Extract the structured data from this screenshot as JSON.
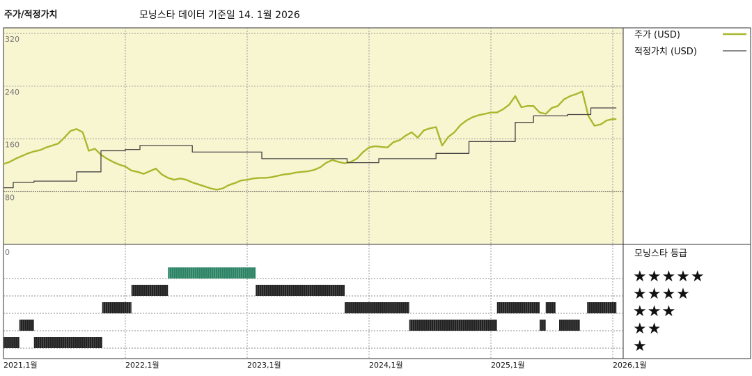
{
  "chart_data": [
    {
      "type": "line",
      "title": "주가/적정가치",
      "subtitle": "모닝스타 데이터 기준일 14. 1월 2026",
      "xlabel": "",
      "ylabel": "",
      "ylim": [
        0,
        320
      ],
      "yticks": [
        "320",
        "240",
        "160",
        "80"
      ],
      "xlim": [
        "2021-01",
        "2026-01"
      ],
      "xticks": [
        "2021,1월",
        "2022,1월",
        "2023,1월",
        "2024,1월",
        "2025,1월",
        "2026,1월"
      ],
      "background_color": "#f8f5d1",
      "grid": true,
      "legend_position": "top-right",
      "series": [
        {
          "name": "주가 (USD)",
          "color": "#a8b82c",
          "x": [
            2021.0,
            2021.05,
            2021.1,
            2021.15,
            2021.2,
            2021.25,
            2021.3,
            2021.35,
            2021.4,
            2021.45,
            2021.5,
            2021.55,
            2021.6,
            2021.65,
            2021.7,
            2021.75,
            2021.8,
            2021.85,
            2021.9,
            2021.95,
            2022.0,
            2022.05,
            2022.1,
            2022.15,
            2022.2,
            2022.25,
            2022.3,
            2022.35,
            2022.4,
            2022.45,
            2022.5,
            2022.55,
            2022.6,
            2022.65,
            2022.7,
            2022.75,
            2022.8,
            2022.85,
            2022.9,
            2022.95,
            2023.0,
            2023.05,
            2023.1,
            2023.15,
            2023.2,
            2023.25,
            2023.3,
            2023.35,
            2023.4,
            2023.45,
            2023.5,
            2023.55,
            2023.6,
            2023.65,
            2023.7,
            2023.75,
            2023.8,
            2023.85,
            2023.9,
            2023.95,
            2024.0,
            2024.05,
            2024.1,
            2024.15,
            2024.2,
            2024.25,
            2024.3,
            2024.35,
            2024.4,
            2024.45,
            2024.5,
            2024.55,
            2024.6,
            2024.65,
            2024.7,
            2024.75,
            2024.8,
            2024.85,
            2024.9,
            2024.95,
            2025.0,
            2025.05,
            2025.1,
            2025.15,
            2025.2,
            2025.25,
            2025.3,
            2025.35,
            2025.4,
            2025.45,
            2025.5,
            2025.55,
            2025.6,
            2025.65,
            2025.7,
            2025.75,
            2025.8,
            2025.85,
            2025.9,
            2025.95,
            2026.0,
            2026.03
          ],
          "values": [
            122,
            125,
            130,
            134,
            138,
            141,
            143,
            147,
            150,
            153,
            162,
            172,
            175,
            170,
            142,
            145,
            136,
            130,
            125,
            121,
            118,
            112,
            110,
            107,
            111,
            115,
            106,
            101,
            98,
            100,
            98,
            94,
            91,
            88,
            85,
            83,
            85,
            90,
            93,
            97,
            98,
            100,
            101,
            101,
            102,
            104,
            106,
            107,
            109,
            110,
            111,
            113,
            117,
            124,
            128,
            125,
            123,
            125,
            130,
            140,
            147,
            149,
            148,
            147,
            155,
            158,
            165,
            170,
            162,
            173,
            176,
            178,
            150,
            163,
            170,
            181,
            188,
            193,
            196,
            198,
            200,
            200,
            205,
            212,
            225,
            208,
            210,
            210,
            200,
            198,
            207,
            210,
            220,
            225,
            228,
            232,
            195,
            180,
            182,
            188,
            190,
            190
          ]
        },
        {
          "name": "적정가치 (USD)",
          "color": "#444444",
          "x": [
            2021.0,
            2021.08,
            2021.08,
            2021.25,
            2021.25,
            2021.6,
            2021.6,
            2021.8,
            2021.8,
            2022.0,
            2022.0,
            2022.12,
            2022.12,
            2022.55,
            2022.55,
            2023.12,
            2023.12,
            2023.82,
            2023.82,
            2024.08,
            2024.08,
            2024.55,
            2024.55,
            2024.82,
            2024.82,
            2025.2,
            2025.2,
            2025.35,
            2025.35,
            2025.63,
            2025.63,
            2025.82,
            2025.82,
            2026.03
          ],
          "values": [
            86,
            86,
            94,
            94,
            96,
            96,
            110,
            110,
            142,
            142,
            144,
            144,
            150,
            150,
            140,
            140,
            130,
            130,
            124,
            124,
            130,
            130,
            138,
            138,
            156,
            156,
            185,
            185,
            195,
            195,
            197,
            197,
            207,
            207
          ]
        }
      ]
    },
    {
      "type": "timeline",
      "title": "모닝스타 등급",
      "star_labels": [
        "★★★★★",
        "★★★★",
        "★★★",
        "★★",
        "★"
      ],
      "ratings": [
        {
          "start": 2021.0,
          "end": 2021.13,
          "stars": 1
        },
        {
          "start": 2021.13,
          "end": 2021.25,
          "stars": 2
        },
        {
          "start": 2021.25,
          "end": 2021.81,
          "stars": 1
        },
        {
          "start": 2021.81,
          "end": 2022.05,
          "stars": 3
        },
        {
          "start": 2022.05,
          "end": 2022.35,
          "stars": 4
        },
        {
          "start": 2022.35,
          "end": 2023.07,
          "stars": 5
        },
        {
          "start": 2023.07,
          "end": 2023.8,
          "stars": 4
        },
        {
          "start": 2023.8,
          "end": 2024.33,
          "stars": 3
        },
        {
          "start": 2024.33,
          "end": 2025.05,
          "stars": 2
        },
        {
          "start": 2025.05,
          "end": 2025.4,
          "stars": 3
        },
        {
          "start": 2025.4,
          "end": 2025.45,
          "stars": 2
        },
        {
          "start": 2025.45,
          "end": 2025.53,
          "stars": 3
        },
        {
          "start": 2025.56,
          "end": 2025.73,
          "stars": 2
        },
        {
          "start": 2025.79,
          "end": 2026.03,
          "stars": 3
        }
      ],
      "colors": {
        "five_star": "#2e8466",
        "other": "#222222"
      }
    }
  ],
  "bottom_axis_zero": "0"
}
